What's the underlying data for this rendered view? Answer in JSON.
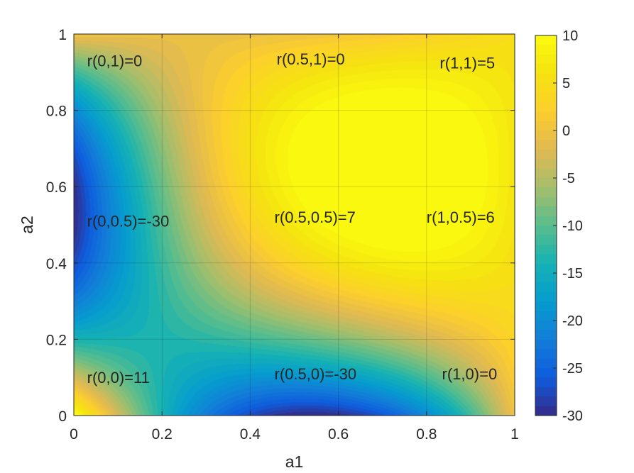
{
  "chart_data": {
    "type": "heatmap",
    "subtype": "filled-contour",
    "title": "",
    "xlabel": "a1",
    "ylabel": "a2",
    "xlim": [
      0,
      1
    ],
    "ylim": [
      0,
      1
    ],
    "x_ticks": [
      "0",
      "0.2",
      "0.4",
      "0.6",
      "0.8",
      "1"
    ],
    "y_ticks": [
      "0",
      "0.2",
      "0.4",
      "0.6",
      "0.8",
      "1"
    ],
    "grid": true,
    "grid_x": [
      0,
      0.5,
      1
    ],
    "grid_y": [
      0,
      0.5,
      1
    ],
    "z": [
      [
        11,
        -30,
        0
      ],
      [
        -30,
        7,
        6
      ],
      [
        0,
        0,
        5
      ]
    ],
    "z_layout": "rows are a2 = 0, 0.5, 1; columns are a1 = 0, 0.5, 1",
    "annotations": [
      {
        "text": "r(0,1)=0",
        "x": 0.03,
        "y": 0.93
      },
      {
        "text": "r(0.5,1)=0",
        "x": 0.46,
        "y": 0.935
      },
      {
        "text": "r(1,1)=5",
        "x": 0.83,
        "y": 0.925
      },
      {
        "text": "r(0,0.5)=-30",
        "x": 0.03,
        "y": 0.51
      },
      {
        "text": "r(0.5,0.5)=7",
        "x": 0.455,
        "y": 0.52
      },
      {
        "text": "r(1,0.5)=6",
        "x": 0.8,
        "y": 0.52
      },
      {
        "text": "r(0,0)=11",
        "x": 0.03,
        "y": 0.1
      },
      {
        "text": "r(0.5,0)=-30",
        "x": 0.455,
        "y": 0.11
      },
      {
        "text": "r(1,0)=0",
        "x": 0.835,
        "y": 0.11
      }
    ],
    "colorbar": {
      "colormap": "parula",
      "range": [
        -30,
        10
      ],
      "ticks": [
        "10",
        "5",
        "0",
        "-5",
        "-10",
        "-15",
        "-20",
        "-25",
        "-30"
      ],
      "tick_values": [
        10,
        5,
        0,
        -5,
        -10,
        -15,
        -20,
        -25,
        -30
      ]
    }
  }
}
